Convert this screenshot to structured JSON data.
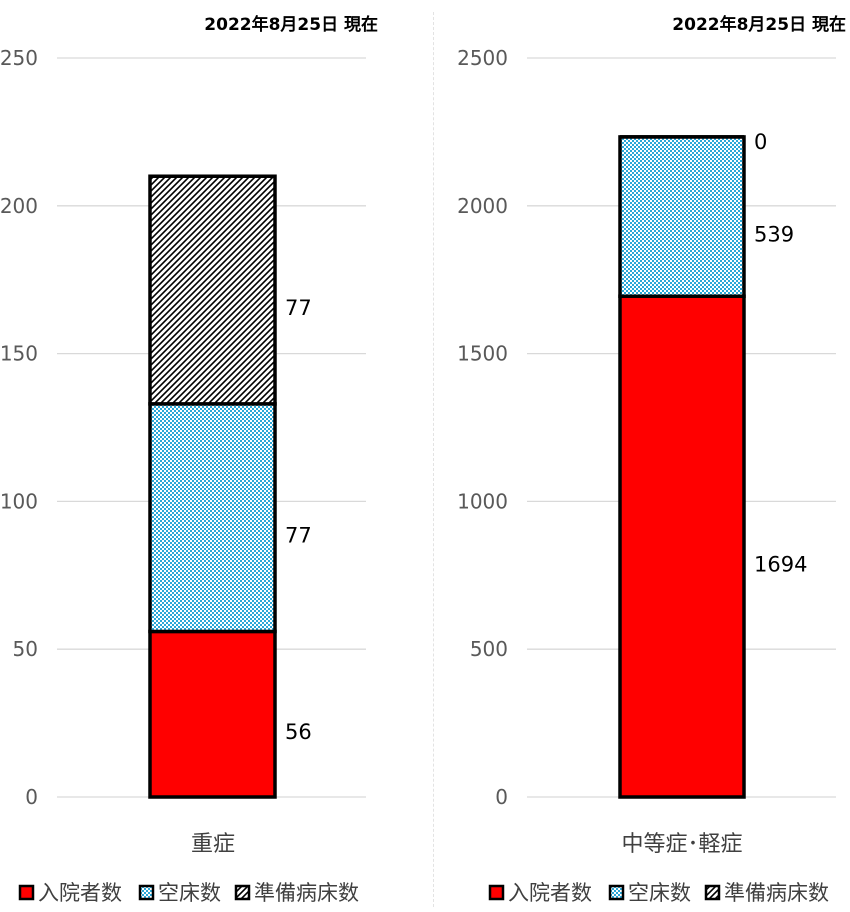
{
  "chart_data": [
    {
      "type": "bar",
      "stacked": true,
      "subtitle": "2022年8月25日 現在",
      "categories": [
        "重症"
      ],
      "ylim": [
        0,
        250
      ],
      "yticks": [
        0,
        50,
        100,
        150,
        200,
        250
      ],
      "grid": true,
      "legend_position": "bottom",
      "series": [
        {
          "name": "入院者数",
          "values": [
            56
          ],
          "labels": [
            "56"
          ],
          "color": "#ff0000",
          "pattern": "solid"
        },
        {
          "name": "空床数",
          "values": [
            77
          ],
          "labels": [
            "77"
          ],
          "color": "#2aa8d8",
          "pattern": "checker"
        },
        {
          "name": "準備病床数",
          "values": [
            77
          ],
          "labels": [
            "77"
          ],
          "color": "#000000",
          "pattern": "diagonal"
        }
      ]
    },
    {
      "type": "bar",
      "stacked": true,
      "subtitle": "2022年8月25日 現在",
      "categories": [
        "中等症･軽症"
      ],
      "ylim": [
        0,
        2500
      ],
      "yticks": [
        0,
        500,
        1000,
        1500,
        2000,
        2500
      ],
      "grid": true,
      "legend_position": "bottom",
      "series": [
        {
          "name": "入院者数",
          "values": [
            1694
          ],
          "labels": [
            "1694"
          ],
          "color": "#ff0000",
          "pattern": "solid"
        },
        {
          "name": "空床数",
          "values": [
            539
          ],
          "labels": [
            "539"
          ],
          "color": "#2aa8d8",
          "pattern": "checker"
        },
        {
          "name": "準備病床数",
          "values": [
            0
          ],
          "labels": [
            "0"
          ],
          "color": "#000000",
          "pattern": "diagonal"
        }
      ]
    }
  ]
}
